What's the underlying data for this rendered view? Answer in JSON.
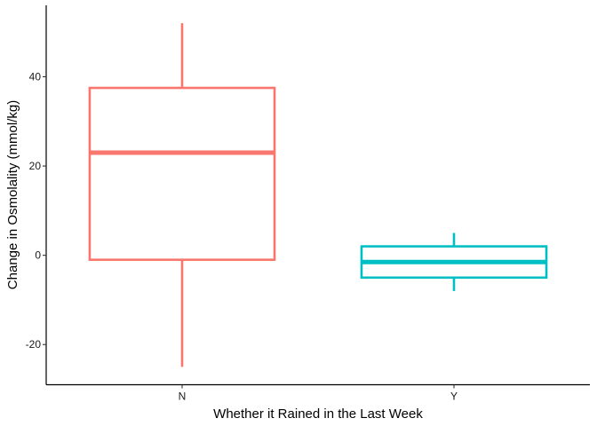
{
  "chart_data": {
    "type": "boxplot",
    "title": "",
    "xlabel": "Whether it Rained in the Last Week",
    "ylabel": "Change in Osmolality (mmol/kg)",
    "categories": [
      "N",
      "Y"
    ],
    "boxes": [
      {
        "category": "N",
        "min": -25,
        "q1": -1,
        "median": 23,
        "q3": 37.5,
        "max": 52,
        "color": "#F8766D"
      },
      {
        "category": "Y",
        "min": -8,
        "q1": -5,
        "median": -1.5,
        "q3": 2,
        "max": 5,
        "color": "#00BFC4"
      }
    ],
    "y_ticks": [
      {
        "value": -20,
        "label": "-20"
      },
      {
        "value": 0,
        "label": "0"
      },
      {
        "value": 20,
        "label": "20"
      },
      {
        "value": 40,
        "label": "40"
      }
    ],
    "ylim": [
      -29,
      56
    ],
    "grid": false,
    "legend": "none"
  }
}
